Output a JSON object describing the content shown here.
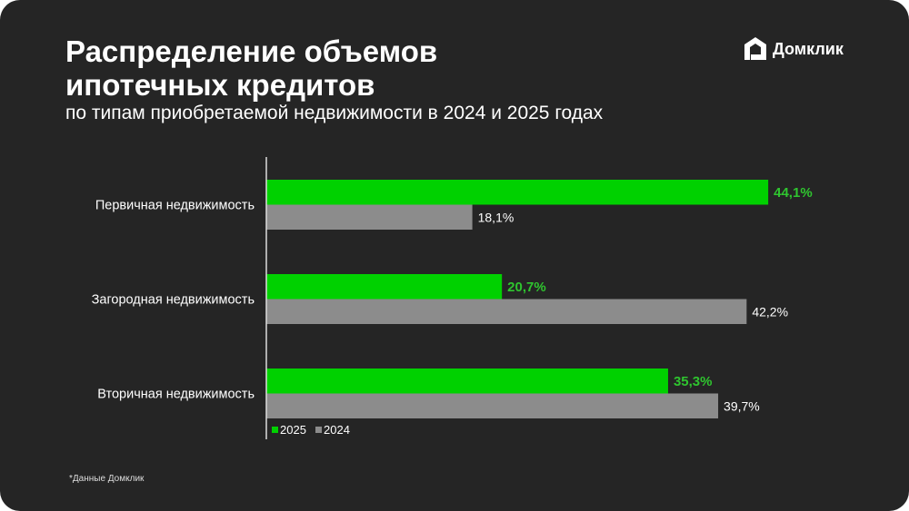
{
  "header": {
    "title_line1": "Распределение объемов",
    "title_line2": "ипотечных кредитов",
    "subtitle": "по типам приобретаемой недвижимости в 2024 и 2025 годах",
    "logo_text": "Домклик"
  },
  "footnote": "*Данные Домклик",
  "chart_data": {
    "type": "bar",
    "orientation": "horizontal",
    "title": "Распределение объемов ипотечных кредитов",
    "categories": [
      "Первичная недвижимость",
      "Загородная недвижимость",
      "Вторичная недвижимость"
    ],
    "series": [
      {
        "name": "2025",
        "color": "#00d100",
        "values": [
          44.1,
          20.7,
          35.3
        ],
        "labels": [
          "44,1%",
          "20,7%",
          "35,3%"
        ]
      },
      {
        "name": "2024",
        "color": "#8c8c8c",
        "values": [
          18.1,
          42.2,
          39.7
        ],
        "labels": [
          "18,1%",
          "42,2%",
          "39,7%"
        ]
      }
    ],
    "xlim": [
      0,
      50
    ],
    "legend": "bottom-left",
    "grid": false
  }
}
